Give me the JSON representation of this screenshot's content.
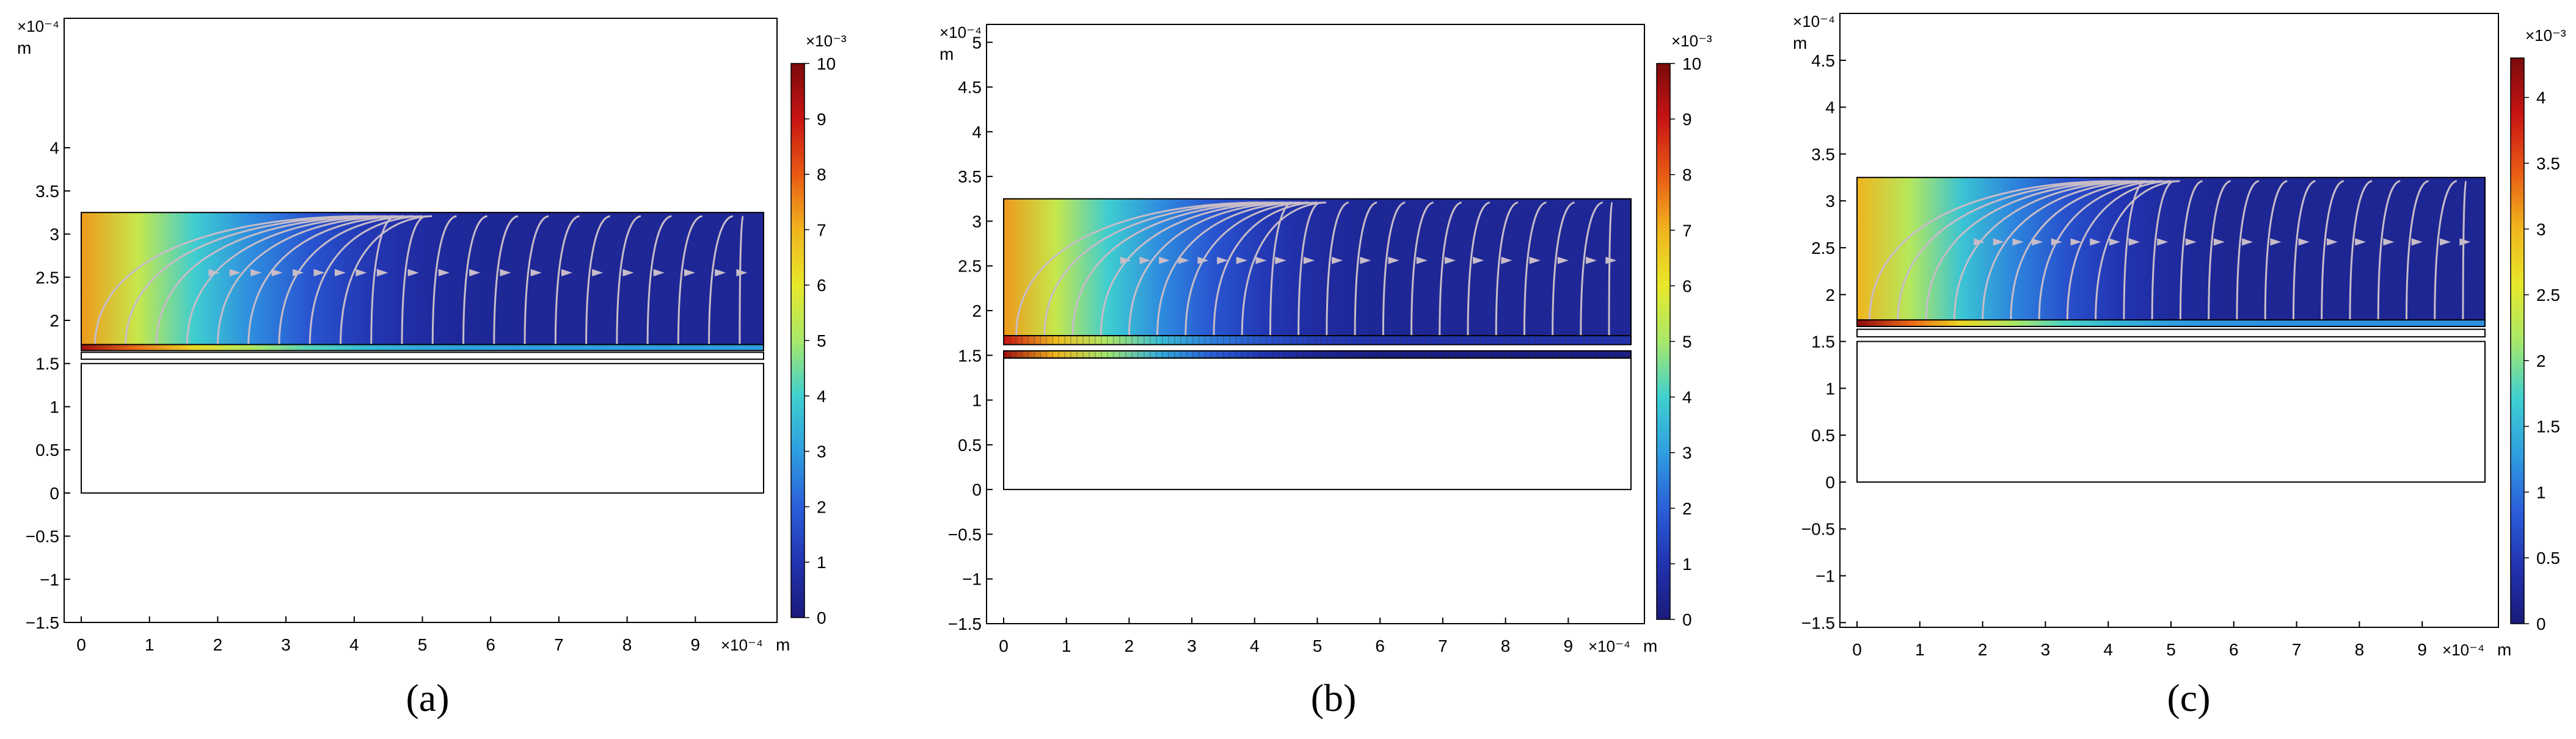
{
  "chart_data": [
    {
      "type": "heatmap",
      "panel_label": "(a)",
      "x_multiplier": "×10⁻⁴",
      "x_unit": "m",
      "y_multiplier": "×10⁻⁴",
      "y_unit": "m",
      "xlim": [
        0,
        10
      ],
      "ylim": [
        -1.5,
        5.5
      ],
      "x_ticks": [
        0,
        1,
        2,
        3,
        4,
        5,
        6,
        7,
        8,
        9
      ],
      "x_tick_labels": [
        "0",
        "1",
        "2",
        "3",
        "4",
        "5",
        "6",
        "7",
        "8",
        "9"
      ],
      "y_ticks": [
        -1.5,
        -1,
        -0.5,
        0,
        0.5,
        1,
        1.5,
        2,
        2.5,
        3,
        3.5,
        4
      ],
      "y_tick_labels": [
        "−1.5",
        "−1",
        "−0.5",
        "0",
        "0.5",
        "1",
        "1.5",
        "2",
        "2.5",
        "3",
        "3.5",
        "4"
      ],
      "colorbar": {
        "multiplier": "×10⁻³",
        "min": 0,
        "max": 10,
        "ticks": [
          0,
          1,
          2,
          3,
          4,
          5,
          6,
          7,
          8,
          9,
          10
        ],
        "tick_labels": [
          "0",
          "1",
          "2",
          "3",
          "4",
          "5",
          "6",
          "7",
          "8",
          "9",
          "10"
        ]
      },
      "field_region": {
        "x": [
          0,
          10
        ],
        "y": [
          1.7,
          3.25
        ],
        "value_left": 7.3,
        "value_right": 0.5
      },
      "thin_layer": {
        "x": [
          0,
          10
        ],
        "y": [
          1.65,
          1.72
        ],
        "value_left": 9.5,
        "value_right": 3.0,
        "meshed": false
      },
      "second_layer": null,
      "lower_box": {
        "x": [
          0,
          10
        ],
        "y": [
          0,
          1.5
        ]
      },
      "upper_outline": {
        "x": [
          0,
          10
        ],
        "y": [
          1.55,
          1.63
        ]
      },
      "streamlines": true,
      "grid": false
    },
    {
      "type": "heatmap",
      "panel_label": "(b)",
      "x_multiplier": "×10⁻⁴",
      "x_unit": "m",
      "y_multiplier": "×10⁻⁴",
      "y_unit": "m",
      "xlim": [
        0,
        10
      ],
      "ylim": [
        -1.5,
        5.2
      ],
      "x_ticks": [
        0,
        1,
        2,
        3,
        4,
        5,
        6,
        7,
        8,
        9
      ],
      "x_tick_labels": [
        "0",
        "1",
        "2",
        "3",
        "4",
        "5",
        "6",
        "7",
        "8",
        "9"
      ],
      "y_ticks": [
        -1.5,
        -1,
        -0.5,
        0,
        0.5,
        1,
        1.5,
        2,
        2.5,
        3,
        3.5,
        4,
        4.5,
        5
      ],
      "y_tick_labels": [
        "−1.5",
        "−1",
        "−0.5",
        "0",
        "0.5",
        "1",
        "1.5",
        "2",
        "2.5",
        "3",
        "3.5",
        "4",
        "4.5",
        "5"
      ],
      "colorbar": {
        "multiplier": "×10⁻³",
        "min": 0,
        "max": 10,
        "ticks": [
          0,
          1,
          2,
          3,
          4,
          5,
          6,
          7,
          8,
          9,
          10
        ],
        "tick_labels": [
          "0",
          "1",
          "2",
          "3",
          "4",
          "5",
          "6",
          "7",
          "8",
          "9",
          "10"
        ]
      },
      "field_region": {
        "x": [
          0,
          10
        ],
        "y": [
          1.72,
          3.25
        ],
        "value_left": 7.3,
        "value_right": 0.5
      },
      "thin_layer": {
        "x": [
          0,
          10
        ],
        "y": [
          1.62,
          1.72
        ],
        "value_left": 9.0,
        "value_right": 1.0,
        "meshed": true
      },
      "second_layer": {
        "x": [
          0,
          10
        ],
        "y": [
          1.47,
          1.55
        ],
        "value_left": 9.5,
        "value_right": 0.2,
        "meshed": true
      },
      "lower_box": {
        "x": [
          0,
          10
        ],
        "y": [
          0,
          1.47
        ]
      },
      "upper_outline": null,
      "streamlines": true,
      "grid": false
    },
    {
      "type": "heatmap",
      "panel_label": "(c)",
      "x_multiplier": "×10⁻⁴",
      "x_unit": "m",
      "y_multiplier": "×10⁻⁴",
      "y_unit": "m",
      "xlim": [
        0,
        10
      ],
      "ylim": [
        -1.55,
        5.0
      ],
      "x_ticks": [
        0,
        1,
        2,
        3,
        4,
        5,
        6,
        7,
        8,
        9
      ],
      "x_tick_labels": [
        "0",
        "1",
        "2",
        "3",
        "4",
        "5",
        "6",
        "7",
        "8",
        "9"
      ],
      "y_ticks": [
        -1.5,
        -1,
        -0.5,
        0,
        0.5,
        1,
        1.5,
        2,
        2.5,
        3,
        3.5,
        4,
        4.5
      ],
      "y_tick_labels": [
        "−1.5",
        "−1",
        "−0.5",
        "0",
        "0.5",
        "1",
        "1.5",
        "2",
        "2.5",
        "3",
        "3.5",
        "4",
        "4.5"
      ],
      "colorbar": {
        "multiplier": "×10⁻³",
        "min": 0,
        "max": 4.3,
        "ticks": [
          0,
          0.5,
          1,
          1.5,
          2,
          2.5,
          3,
          3.5,
          4
        ],
        "tick_labels": [
          "0",
          "0.5",
          "1",
          "1.5",
          "2",
          "2.5",
          "3",
          "3.5",
          "4"
        ]
      },
      "field_region": {
        "x": [
          0,
          10
        ],
        "y": [
          1.72,
          3.25
        ],
        "value_left": 3.0,
        "value_right": 0.2
      },
      "thin_layer": {
        "x": [
          0,
          10
        ],
        "y": [
          1.66,
          1.73
        ],
        "value_left": 4.2,
        "value_right": 1.2,
        "meshed": false
      },
      "second_layer": null,
      "lower_box": {
        "x": [
          0,
          10
        ],
        "y": [
          0,
          1.5
        ]
      },
      "upper_outline": {
        "x": [
          0,
          10
        ],
        "y": [
          1.55,
          1.63
        ]
      },
      "streamlines": true,
      "grid": false
    }
  ],
  "colormap": [
    "#1a1a7a",
    "#2233b0",
    "#2b5fd9",
    "#2f9ee0",
    "#3fd0d0",
    "#a8e86a",
    "#e8e82a",
    "#f0b41e",
    "#e85a14",
    "#c81414",
    "#7a0a0a"
  ],
  "streamline_color": "#c7bcc8"
}
